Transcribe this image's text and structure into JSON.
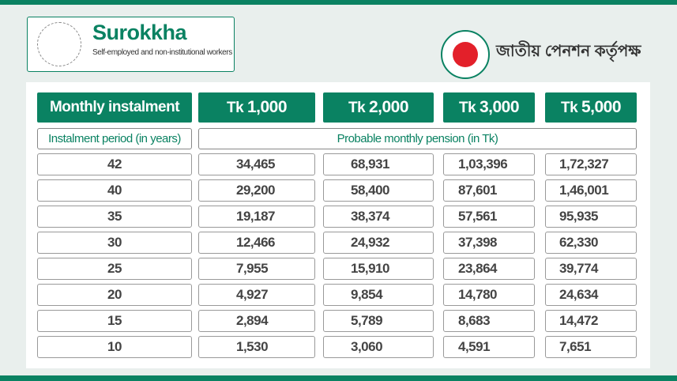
{
  "brand": {
    "name": "Surokkha",
    "tagline": "Self-employed and non-institutional workers",
    "authority": "জাতীয় পেনশন কর্তৃপক্ষ",
    "colors": {
      "primary": "#0a8262",
      "seal_red": "#e3202a",
      "background": "#e9efed"
    }
  },
  "table": {
    "header": "Monthly instalment",
    "columns": [
      {
        "prefix": "Tk",
        "amount": "1,000"
      },
      {
        "prefix": "Tk",
        "amount": "2,000"
      },
      {
        "prefix": "Tk",
        "amount": "3,000"
      },
      {
        "prefix": "Tk",
        "amount": "5,000"
      }
    ],
    "period_label": "Instalment period (in years)",
    "pension_label": "Probable monthly pension (in Tk)",
    "rows": [
      {
        "years": "42",
        "values": [
          "34,465",
          "68,931",
          "1,03,396",
          "1,72,327"
        ]
      },
      {
        "years": "40",
        "values": [
          "29,200",
          "58,400",
          "87,601",
          "1,46,001"
        ]
      },
      {
        "years": "35",
        "values": [
          "19,187",
          "38,374",
          "57,561",
          "95,935"
        ]
      },
      {
        "years": "30",
        "values": [
          "12,466",
          "24,932",
          "37,398",
          "62,330"
        ]
      },
      {
        "years": "25",
        "values": [
          "7,955",
          "15,910",
          "23,864",
          "39,774"
        ]
      },
      {
        "years": "20",
        "values": [
          "4,927",
          "9,854",
          "14,780",
          "24,634"
        ]
      },
      {
        "years": "15",
        "values": [
          "2,894",
          "5,789",
          "8,683",
          "14,472"
        ]
      },
      {
        "years": "10",
        "values": [
          "1,530",
          "3,060",
          "4,591",
          "7,651"
        ]
      }
    ]
  }
}
